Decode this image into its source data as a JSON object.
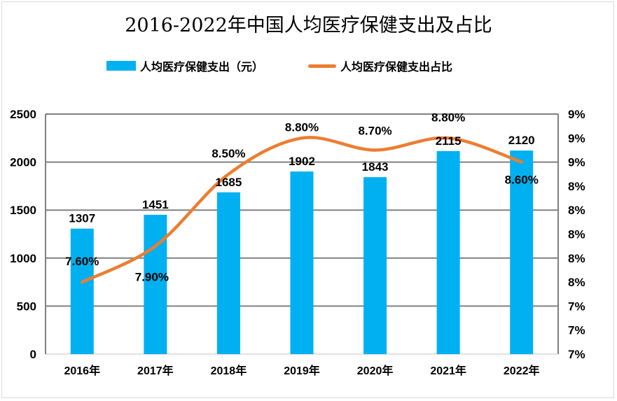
{
  "chart_data": {
    "type": "bar",
    "title": "2016-2022年中国人均医疗保健支出及占比",
    "categories": [
      "2016年",
      "2017年",
      "2018年",
      "2019年",
      "2020年",
      "2021年",
      "2022年"
    ],
    "series": [
      {
        "name": "人均医疗保健支出（元）",
        "type": "bar",
        "axis": "left",
        "color": "#00b0f0",
        "values": [
          1307,
          1451,
          1685,
          1902,
          1843,
          2115,
          2120
        ],
        "labels": [
          "1307",
          "1451",
          "1685",
          "1902",
          "1843",
          "2115",
          "2120"
        ]
      },
      {
        "name": "人均医疗保健支出占比",
        "type": "line",
        "smooth": true,
        "axis": "right",
        "color": "#ed7d31",
        "values": [
          7.6,
          7.9,
          8.5,
          8.8,
          8.7,
          8.8,
          8.6
        ],
        "labels": [
          "7.60%",
          "7.90%",
          "8.50%",
          "8.80%",
          "8.70%",
          "8.80%",
          "8.60%"
        ]
      }
    ],
    "left_axis": {
      "ylim": [
        0,
        2500
      ],
      "ticks": [
        0,
        500,
        1000,
        1500,
        2000,
        2500
      ],
      "tick_labels": [
        "0",
        "500",
        "1000",
        "1500",
        "2000",
        "2500"
      ]
    },
    "right_axis": {
      "ylim": [
        7.0,
        9.0
      ],
      "ticks": [
        7.0,
        7.2,
        7.4,
        7.6,
        7.8,
        8.0,
        8.2,
        8.4,
        8.6,
        8.8,
        9.0
      ],
      "tick_labels": [
        "7%",
        "7%",
        "7%",
        "8%",
        "8%",
        "8%",
        "8%",
        "8%",
        "9%",
        "9%",
        "9%"
      ]
    },
    "xlabel": "",
    "ylabel": "",
    "grid": true,
    "legend": {
      "placement": "top",
      "entries": [
        "人均医疗保健支出（元）",
        "人均医疗保健支出占比"
      ]
    }
  }
}
